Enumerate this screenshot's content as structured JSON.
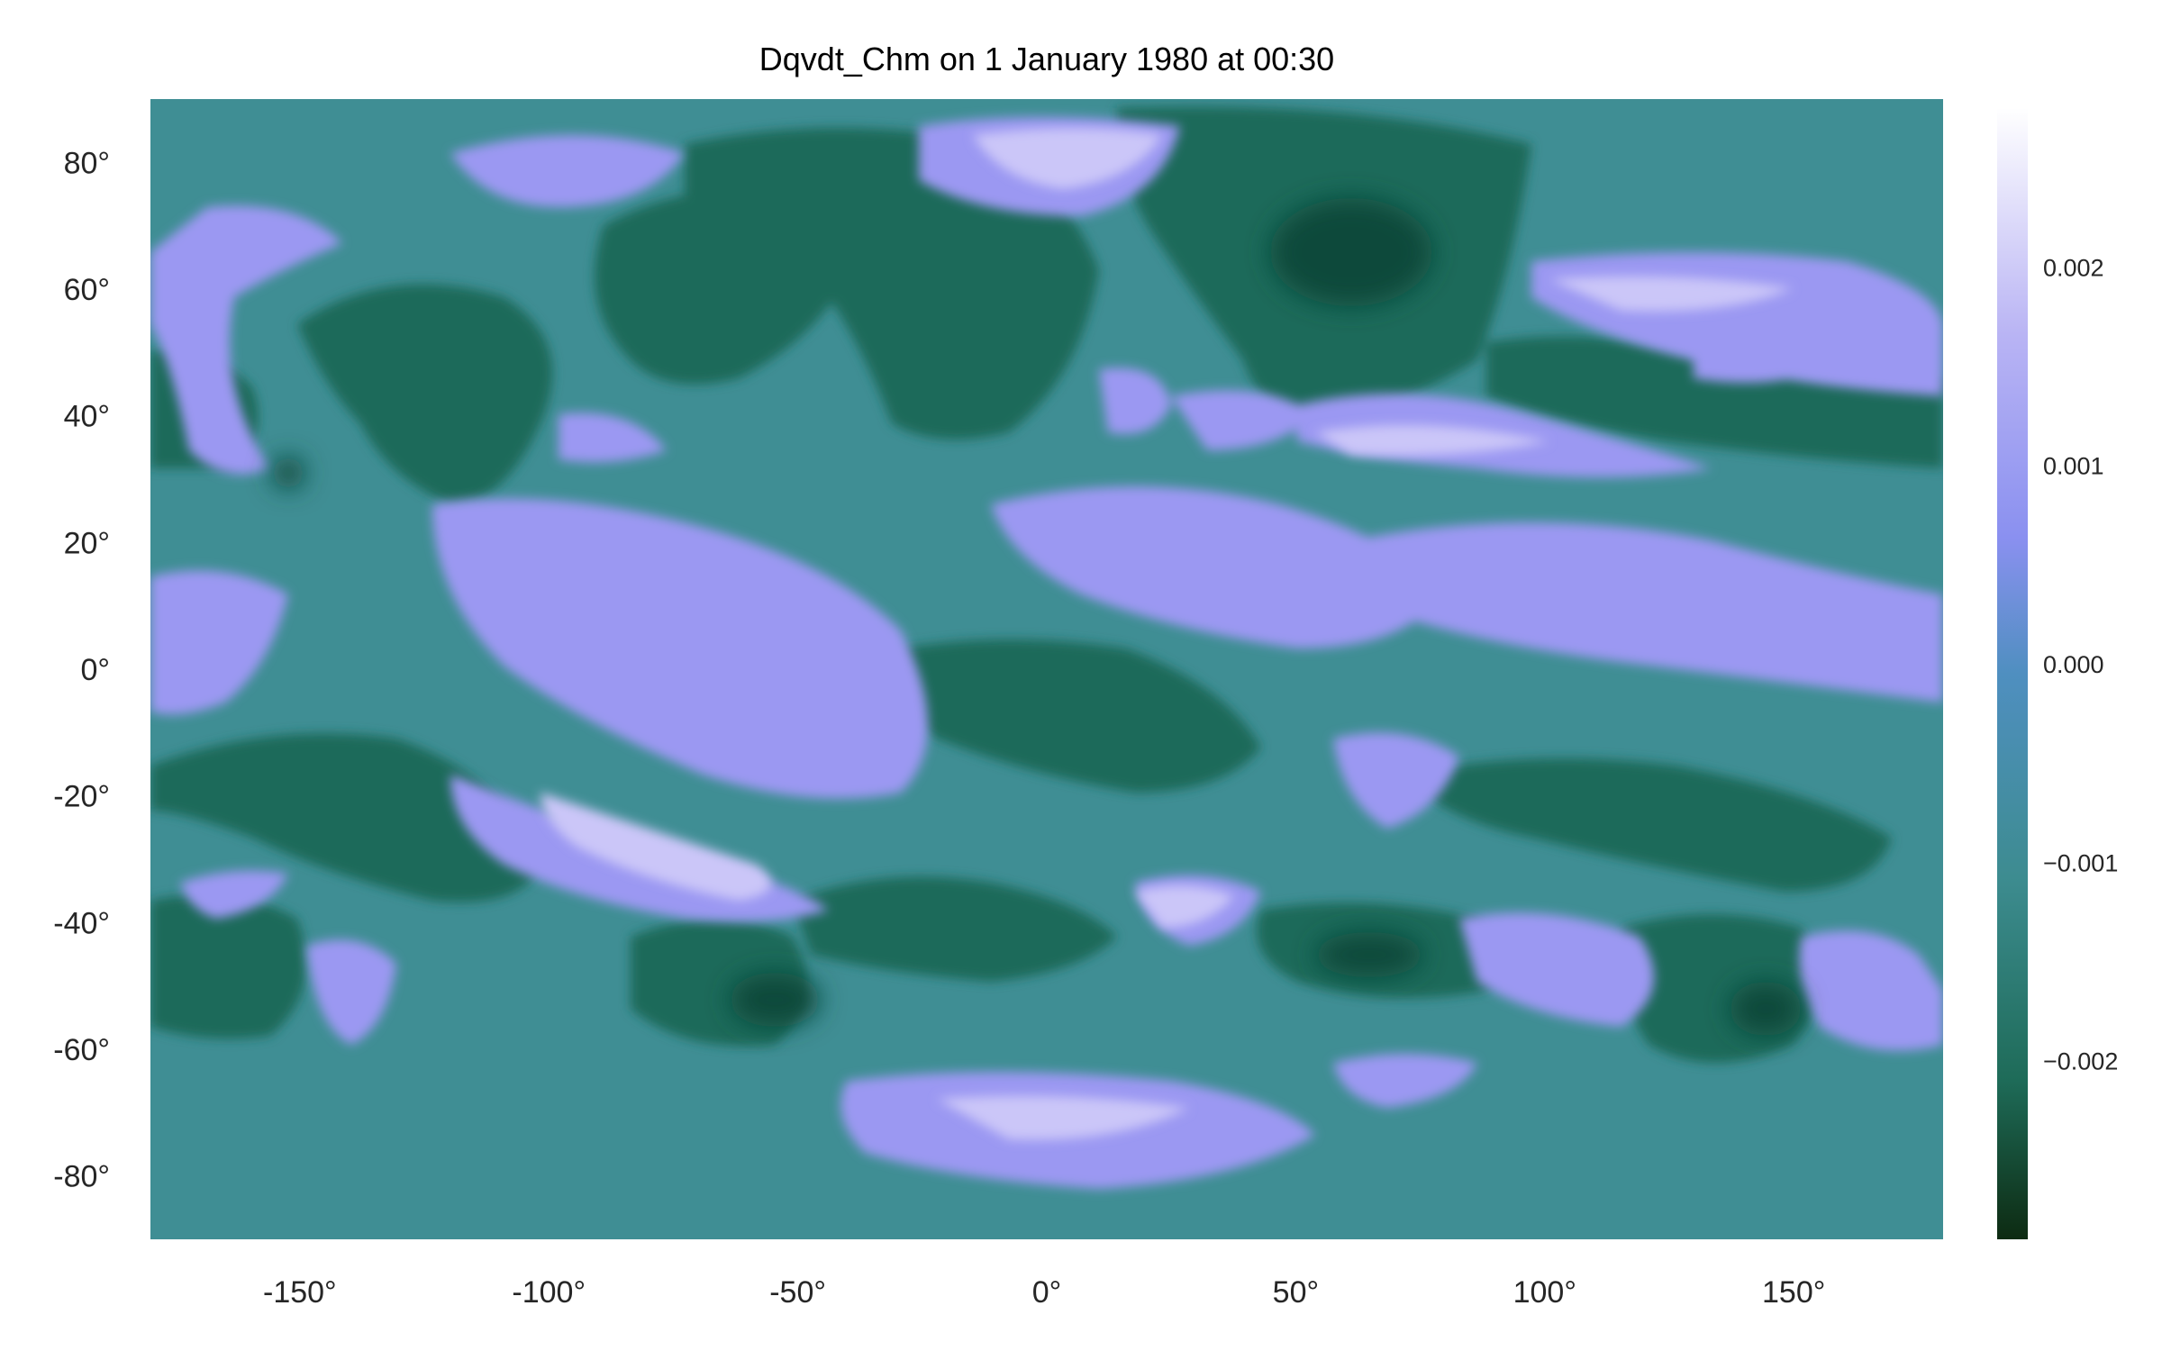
{
  "chart_data": {
    "type": "heatmap",
    "title": "Dqvdt_Chm on 1 January 1980 at 00:30",
    "xlim": [
      -180,
      180
    ],
    "ylim": [
      -90,
      90
    ],
    "x_ticks": [
      -150,
      -100,
      -50,
      0,
      50,
      100,
      150
    ],
    "x_tick_labels": [
      "-150°",
      "-100°",
      "-50°",
      "0°",
      "50°",
      "100°",
      "150°"
    ],
    "y_ticks": [
      80,
      60,
      40,
      20,
      0,
      -20,
      -40,
      -60,
      -80
    ],
    "y_tick_labels": [
      "80°",
      "60°",
      "40°",
      "20°",
      "0°",
      "-20°",
      "-40°",
      "-60°",
      "-80°"
    ],
    "colorbar": {
      "vmin": -0.0029,
      "vmax": 0.0028,
      "ticks": [
        0.002,
        0.001,
        0.0,
        -0.001,
        -0.002
      ],
      "tick_labels": [
        "0.002",
        "0.001",
        "0.000",
        "−0.001",
        "−0.002"
      ],
      "colormap": [
        "#0d2b12",
        "#1e6b58",
        "#3a8a8f",
        "#4f9aa6",
        "#8a90f0",
        "#b6b0f4",
        "#ffffff"
      ]
    },
    "grid": false,
    "colors": {
      "background": "#3f8e94",
      "light_band": "#9b98f2",
      "pale_band": "#c9c4f7",
      "dark_band": "#1d6a5a"
    }
  }
}
